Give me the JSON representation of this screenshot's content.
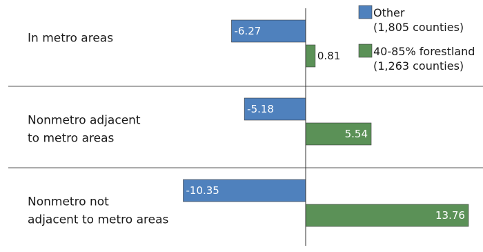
{
  "chart_data": {
    "type": "bar",
    "orientation": "horizontal",
    "categories": [
      [
        "In metro areas"
      ],
      [
        "Nonmetro adjacent",
        "to metro areas"
      ],
      [
        "Nonmetro not",
        "adjacent to metro areas"
      ]
    ],
    "series": [
      {
        "name": "Other",
        "name2": "(1,805 counties)",
        "color": "#4f81bd",
        "values": [
          -6.27,
          -5.18,
          -10.35
        ]
      },
      {
        "name": "40-85% forestland",
        "name2": "(1,263 counties)",
        "color": "#5b9157",
        "values": [
          0.81,
          5.54,
          13.76
        ]
      }
    ],
    "value_labels": [
      [
        "-6.27",
        "-5.18",
        "-10.35"
      ],
      [
        "0.81",
        "5.54",
        "13.76"
      ]
    ],
    "grid": false,
    "legend_position": "top-right"
  }
}
